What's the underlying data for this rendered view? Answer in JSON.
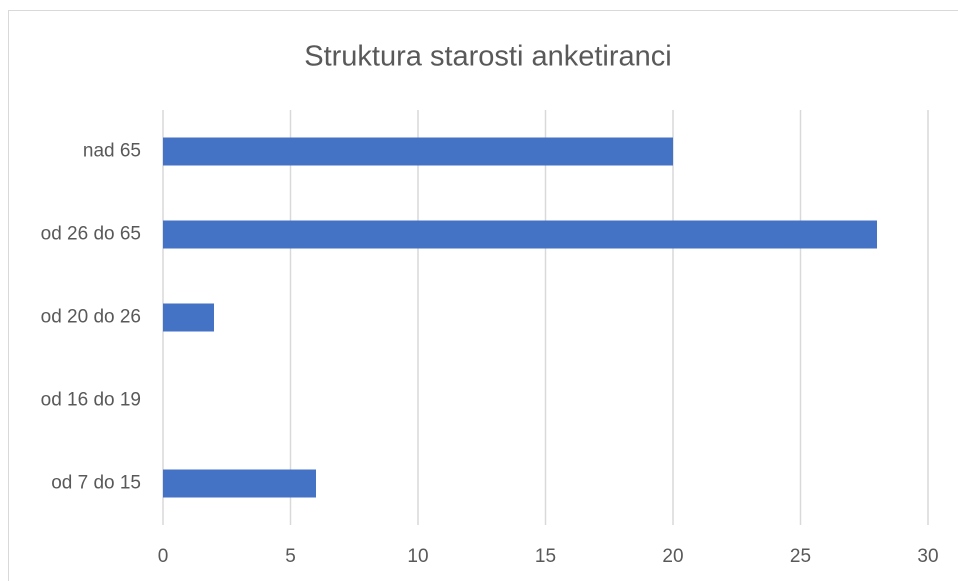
{
  "chart_data": {
    "type": "hbar",
    "title": "Struktura starosti anketiranci",
    "categories": [
      "od 7 do 15",
      "od 16 do 19",
      "od 20 do 26",
      "od 26 do 65",
      "nad 65"
    ],
    "values": [
      6,
      0,
      2,
      28,
      20
    ],
    "color": "#4472c4",
    "xlim": [
      0,
      30
    ],
    "xticks": [
      0,
      5,
      10,
      15,
      20,
      25,
      30
    ],
    "grid": true
  }
}
